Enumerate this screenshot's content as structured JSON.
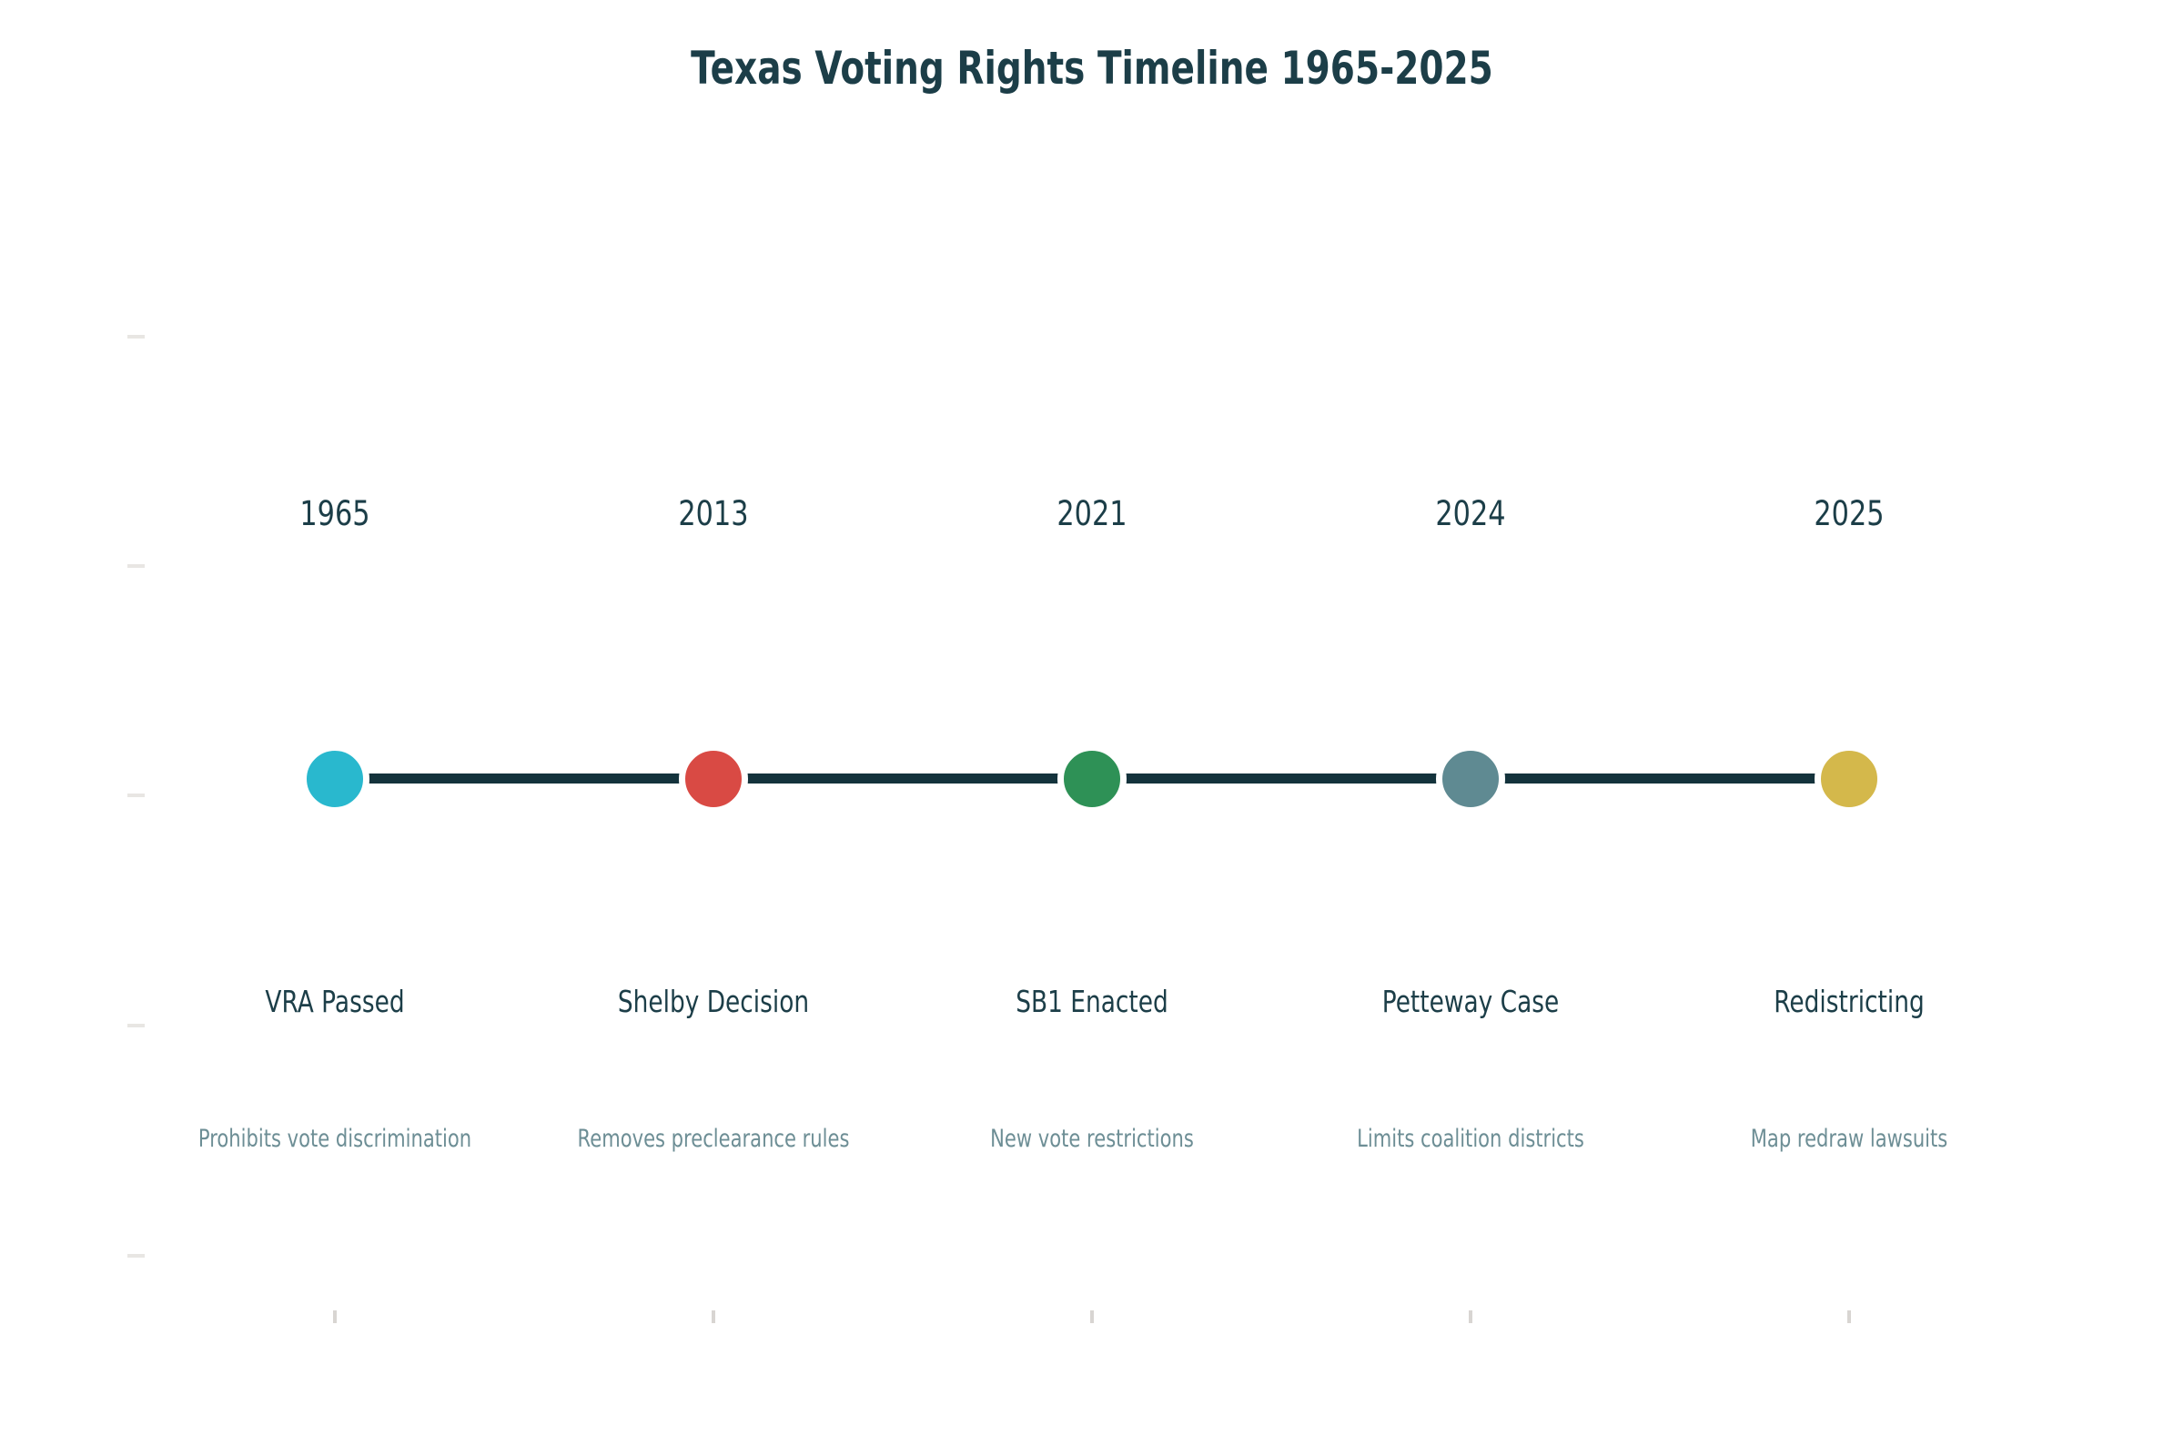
{
  "title": "Texas Voting Rights Timeline 1965-2025",
  "chart_data": {
    "type": "timeline",
    "title": "Texas Voting Rights Timeline 1965-2025",
    "orientation": "horizontal",
    "equal_spacing": true,
    "grid": false,
    "axes": {
      "x_tick_count": 5,
      "y_tick_count": 5,
      "tick_labels_visible": false
    },
    "line_color": "#14333c",
    "events": [
      {
        "year": "1965",
        "label": "VRA Passed",
        "description": "Prohibits vote discrimination",
        "marker_color": "#29b8ce"
      },
      {
        "year": "2013",
        "label": "Shelby Decision",
        "description": "Removes preclearance rules",
        "marker_color": "#d94a44"
      },
      {
        "year": "2021",
        "label": "SB1 Enacted",
        "description": "New vote restrictions",
        "marker_color": "#2e9156"
      },
      {
        "year": "2024",
        "label": "Petteway Case",
        "description": "Limits coalition districts",
        "marker_color": "#5f8a92"
      },
      {
        "year": "2025",
        "label": "Redistricting",
        "description": "Map redraw lawsuits",
        "marker_color": "#d4b84b"
      }
    ]
  },
  "colors": {
    "background": "#ffffff",
    "title_text": "#1c3e48",
    "year_text": "#1c3e48",
    "label_text": "#1c3e48",
    "description_text": "#6d8e95",
    "timeline_line": "#14333c",
    "marker_edge": "#ffffff",
    "y_tick": "#e8e6e3",
    "x_tick": "#d8d5d2"
  }
}
